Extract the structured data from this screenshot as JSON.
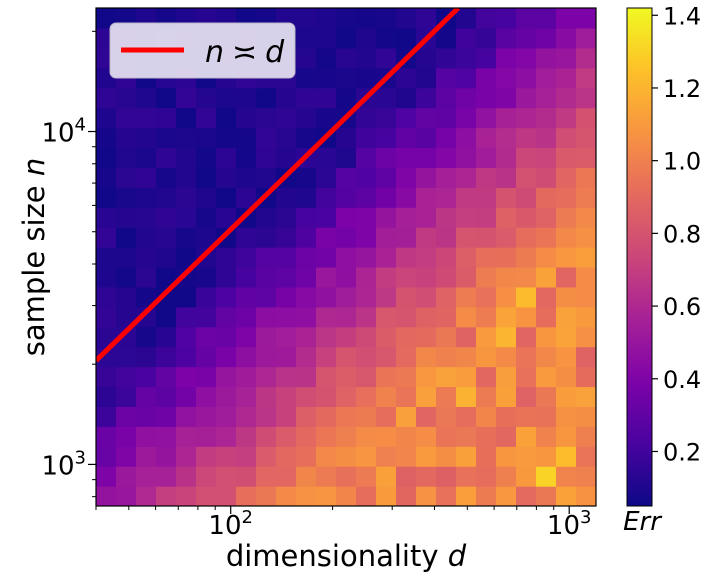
{
  "chart_data": {
    "type": "heatmap",
    "title": "",
    "xlabel_text": "dimensionality",
    "xlabel_var": "d",
    "ylabel_text": "sample size",
    "ylabel_var": "n",
    "x_scale": "log",
    "y_scale": "log",
    "xlim": [
      40,
      1200
    ],
    "ylim": [
      750,
      23500
    ],
    "x_ticks": [
      {
        "value": 100,
        "base": "10",
        "exp": "2"
      },
      {
        "value": 1000,
        "base": "10",
        "exp": "3"
      }
    ],
    "y_ticks": [
      {
        "value": 1000,
        "base": "10",
        "exp": "3"
      },
      {
        "value": 10000,
        "base": "10",
        "exp": "4"
      }
    ],
    "grid": {
      "columns": 25,
      "rows": 25
    },
    "colormap": "plasma",
    "colorbar": {
      "label": "Err",
      "range": [
        0.05,
        1.42
      ],
      "ticks": [
        "0.2",
        "0.4",
        "0.6",
        "0.8",
        "1.0",
        "1.2",
        "1.4"
      ]
    },
    "overlay_line": {
      "label_lhs": "n",
      "label_relation": "≍",
      "label_rhs": "d",
      "color": "#ff0000",
      "points": [
        [
          40,
          2050
        ],
        [
          470,
          23500
        ]
      ]
    },
    "legend_position": "top-left",
    "value_model": "Err ≈ 1.0 to 1.25 (noisy) where n < ~4.9·d; falls to ≈ 0.15 at large n, small d; highlights ~1.35–1.42 scattered"
  },
  "colors": {
    "line": "#ff0000",
    "legend_bg": "#ece8f4",
    "legend_border": "#cccccc"
  }
}
